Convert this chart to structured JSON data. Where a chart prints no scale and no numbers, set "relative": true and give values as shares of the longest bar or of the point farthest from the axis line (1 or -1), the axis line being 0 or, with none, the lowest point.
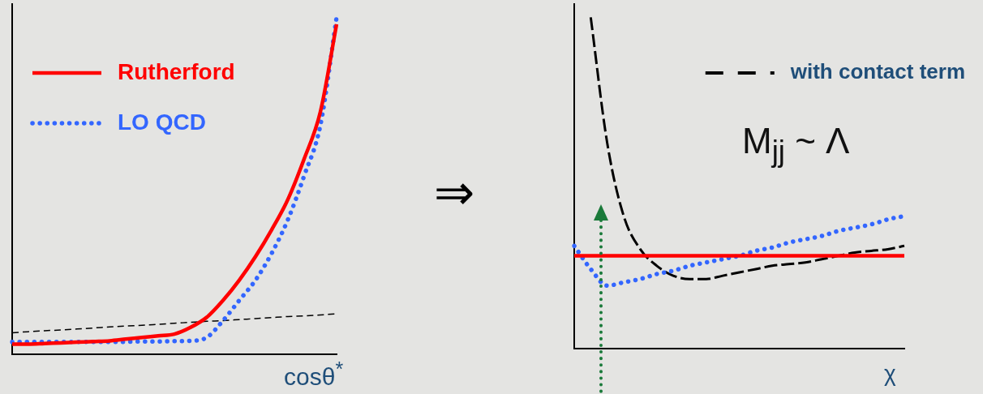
{
  "chart_data": [
    {
      "type": "line",
      "xlabel": "cosθ$^{*}$",
      "relative": true,
      "tick_labels": false,
      "grid": false,
      "legend": "top left",
      "categories": [
        null,
        null,
        null,
        null,
        null,
        null,
        null,
        null,
        null,
        null,
        null,
        null,
        null,
        null,
        null,
        null,
        null,
        null,
        null,
        null,
        null
      ],
      "annotations": [
        "⇒"
      ],
      "series": [
        {
          "name": "Rutherford",
          "color": "#ff0000",
          "line_style": "solid",
          "values": [
            0.03,
            0.03,
            0.032,
            0.034,
            0.036,
            0.038,
            0.04,
            0.045,
            0.05,
            0.055,
            0.06,
            0.08,
            0.11,
            0.16,
            0.22,
            0.29,
            0.37,
            0.46,
            0.58,
            0.72,
            0.98
          ]
        },
        {
          "name": "LO QCD",
          "color": "#3366ff",
          "line_style": "dotted",
          "values": [
            0.037,
            0.037,
            0.037,
            0.037,
            0.037,
            0.037,
            0.037,
            0.037,
            0.038,
            0.038,
            0.039,
            0.04,
            0.05,
            0.1,
            0.16,
            0.22,
            0.3,
            0.4,
            0.53,
            0.68,
            1.0
          ]
        },
        {
          "color": "#000000",
          "line_style": "dashed",
          "values": [
            0.064,
            0.067,
            0.07,
            0.072,
            0.075,
            0.078,
            0.081,
            0.084,
            0.086,
            0.089,
            0.092,
            0.095,
            0.098,
            0.1,
            0.103,
            0.106,
            0.109,
            0.112,
            0.114,
            0.117,
            0.12
          ]
        }
      ]
    },
    {
      "type": "line",
      "xlabel": "χ",
      "relative": true,
      "tick_labels": false,
      "grid": false,
      "legend": "top right",
      "categories": [
        null,
        null,
        null,
        null,
        null,
        null,
        null,
        null,
        null,
        null,
        null,
        null,
        null,
        null,
        null,
        null,
        null,
        null,
        null,
        null,
        null
      ],
      "annotations": [
        "M$_{jj}$ ~ Λ"
      ],
      "series": [
        {
          "color": "#ff0000",
          "line_style": "solid",
          "values": [
            0.28,
            0.28,
            0.28,
            0.28,
            0.28,
            0.28,
            0.28,
            0.28,
            0.28,
            0.28,
            0.28,
            0.28,
            0.28,
            0.28,
            0.28,
            0.28,
            0.28,
            0.28,
            0.28,
            0.28,
            0.28
          ]
        },
        {
          "color": "#3366ff",
          "line_style": "dotted",
          "values": [
            0.31,
            0.24,
            0.19,
            0.2,
            0.21,
            0.225,
            0.235,
            0.25,
            0.26,
            0.27,
            0.28,
            0.295,
            0.305,
            0.32,
            0.33,
            0.34,
            0.355,
            0.365,
            0.375,
            0.39,
            0.4
          ]
        },
        {
          "name": "with contact term",
          "color": "#000000",
          "line_style": "dashed",
          "values": [
            null,
            1.0,
            0.62,
            0.4,
            0.3,
            0.25,
            0.22,
            0.21,
            0.21,
            0.22,
            0.23,
            0.24,
            0.25,
            0.255,
            0.26,
            0.27,
            0.28,
            0.29,
            0.295,
            0.3,
            0.31
          ]
        }
      ]
    }
  ]
}
